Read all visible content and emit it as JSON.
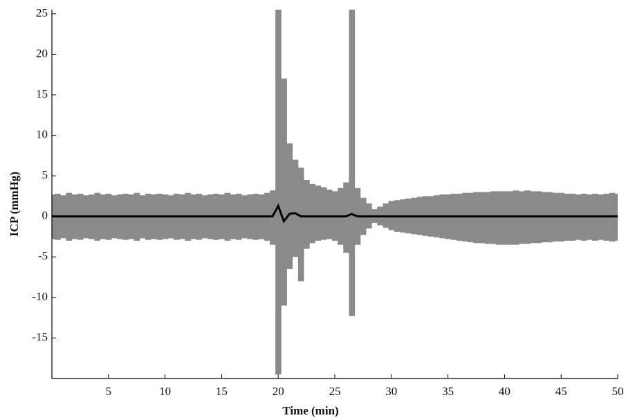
{
  "chart_data": {
    "type": "range_line",
    "xlabel": "Time (min)",
    "ylabel": "ICP (mmHg)",
    "x": [
      0,
      0.5,
      1,
      1.5,
      2,
      2.5,
      3,
      3.5,
      4,
      4.5,
      5,
      5.5,
      6,
      6.5,
      7,
      7.5,
      8,
      8.5,
      9,
      9.5,
      10,
      10.5,
      11,
      11.5,
      12,
      12.5,
      13,
      13.5,
      14,
      14.5,
      15,
      15.5,
      16,
      16.5,
      17,
      17.5,
      18,
      18.5,
      19,
      19.5,
      20,
      20.5,
      21,
      21.5,
      22,
      22.5,
      23,
      23.5,
      24,
      24.5,
      25,
      25.5,
      26,
      26.5,
      27,
      27.5,
      28,
      28.5,
      29,
      29.5,
      30,
      30.5,
      31,
      31.5,
      32,
      32.5,
      33,
      33.5,
      34,
      34.5,
      35,
      35.5,
      36,
      36.5,
      37,
      37.5,
      38,
      38.5,
      39,
      39.5,
      40,
      40.5,
      41,
      41.5,
      42,
      42.5,
      43,
      43.5,
      44,
      44.5,
      45,
      45.5,
      46,
      46.5,
      47,
      47.5,
      48,
      48.5,
      49,
      49.5,
      50
    ],
    "series": [
      {
        "color": "#8a8a8a",
        "values": [
          2.7,
          2.8,
          2.6,
          2.9,
          2.7,
          2.8,
          2.6,
          2.7,
          2.9,
          2.7,
          2.8,
          2.6,
          2.7,
          2.8,
          2.7,
          2.9,
          2.6,
          2.8,
          2.7,
          2.8,
          2.7,
          2.6,
          2.8,
          2.7,
          2.9,
          2.7,
          2.8,
          2.6,
          2.7,
          2.8,
          2.7,
          2.9,
          2.7,
          2.8,
          2.6,
          2.7,
          2.8,
          2.7,
          2.9,
          3.2,
          25.5,
          17,
          9,
          7,
          6,
          4.5,
          4,
          3.8,
          3.6,
          3.3,
          3.1,
          3.5,
          4.2,
          25.5,
          3.5,
          2.3,
          1.6,
          0.9,
          1.2,
          1.6,
          1.9,
          2.0,
          2.1,
          2.2,
          2.3,
          2.4,
          2.5,
          2.5,
          2.6,
          2.7,
          2.7,
          2.8,
          2.8,
          2.9,
          2.9,
          3.0,
          3.0,
          3.0,
          3.1,
          3.1,
          3.1,
          3.1,
          3.2,
          3.1,
          3.2,
          3.1,
          3.1,
          3.0,
          3.0,
          2.9,
          2.9,
          2.8,
          2.8,
          2.7,
          2.8,
          2.7,
          2.8,
          2.7,
          2.8,
          2.9,
          2.8
        ]
      },
      {
        "color": "#8a8a8a",
        "values": [
          -2.8,
          -2.9,
          -2.7,
          -3.0,
          -2.8,
          -2.9,
          -2.7,
          -2.8,
          -3.0,
          -2.8,
          -2.9,
          -2.7,
          -2.8,
          -2.9,
          -2.8,
          -3.0,
          -2.7,
          -2.9,
          -2.8,
          -2.9,
          -2.8,
          -2.7,
          -2.9,
          -2.8,
          -3.0,
          -2.8,
          -2.9,
          -2.7,
          -2.8,
          -2.9,
          -2.8,
          -3.0,
          -2.8,
          -2.9,
          -2.7,
          -2.8,
          -2.9,
          -2.8,
          -3.0,
          -3.5,
          -19.5,
          -11,
          -6.5,
          -5,
          -8,
          -4,
          -3.3,
          -3,
          -2.9,
          -2.8,
          -3,
          -3.5,
          -4.5,
          -12.3,
          -3.5,
          -2.3,
          -1.5,
          -0.8,
          -1.1,
          -1.4,
          -1.7,
          -1.9,
          -2.0,
          -2.1,
          -2.2,
          -2.3,
          -2.4,
          -2.5,
          -2.6,
          -2.7,
          -2.8,
          -2.9,
          -3.0,
          -3.1,
          -3.2,
          -3.3,
          -3.3,
          -3.4,
          -3.4,
          -3.5,
          -3.5,
          -3.5,
          -3.5,
          -3.4,
          -3.4,
          -3.3,
          -3.3,
          -3.2,
          -3.2,
          -3.1,
          -3.1,
          -3.0,
          -3.0,
          -2.9,
          -3.0,
          -2.9,
          -3.0,
          -2.9,
          -3.0,
          -3.1,
          -3.0
        ]
      },
      {
        "color": "#000000",
        "values": [
          0,
          0,
          0,
          0,
          0,
          0,
          0,
          0,
          0,
          0,
          0,
          0,
          0,
          0,
          0,
          0,
          0,
          0,
          0,
          0,
          0,
          0,
          0,
          0,
          0,
          0,
          0,
          0,
          0,
          0,
          0,
          0,
          0,
          0,
          0,
          0,
          0,
          0,
          0,
          0,
          1.3,
          -0.6,
          0.3,
          0.4,
          0,
          0,
          0,
          0,
          0,
          0,
          0,
          0,
          0,
          0.3,
          0,
          0,
          0,
          0,
          0,
          0,
          0,
          0,
          0,
          0,
          0,
          0,
          0,
          0,
          0,
          0,
          0,
          0,
          0,
          0,
          0,
          0,
          0,
          0,
          0,
          0,
          0,
          0,
          0,
          0,
          0,
          0,
          0,
          0,
          0,
          0,
          0,
          0,
          0,
          0,
          0,
          0,
          0,
          0,
          0,
          0,
          0
        ]
      }
    ],
    "xlim": [
      0,
      50
    ],
    "xticks": [
      5,
      10,
      15,
      20,
      25,
      30,
      35,
      40,
      45,
      50
    ],
    "ylim": [
      -20,
      25.5
    ],
    "yticks": [
      -15,
      -10,
      -5,
      0,
      5,
      10,
      15,
      20,
      25
    ]
  }
}
